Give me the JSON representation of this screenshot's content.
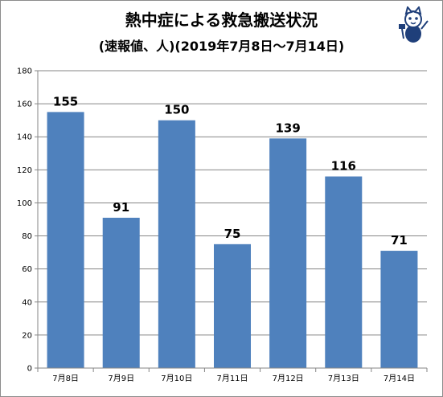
{
  "title": "熱中症による救急搬送状況",
  "subtitle": "(速報値、人)(2019年7月8日～7月14日)",
  "icons": {
    "mascot": "cat-mascot-icon"
  },
  "colors": {
    "bar": "#4f81bd",
    "grid": "#868686",
    "axis": "#868686"
  },
  "chart_data": {
    "type": "bar",
    "title": "熱中症による救急搬送状況",
    "subtitle": "(速報値、人)(2019年7月8日～7月14日)",
    "categories": [
      "7月8日",
      "7月9日",
      "7月10日",
      "7月11日",
      "7月12日",
      "7月13日",
      "7月14日"
    ],
    "values": [
      155,
      91,
      150,
      75,
      139,
      116,
      71
    ],
    "yticks": [
      0,
      20,
      40,
      60,
      80,
      100,
      120,
      140,
      160,
      180
    ],
    "ylim": [
      0,
      180
    ],
    "grid": true,
    "legend": "none",
    "data_labels": true
  }
}
